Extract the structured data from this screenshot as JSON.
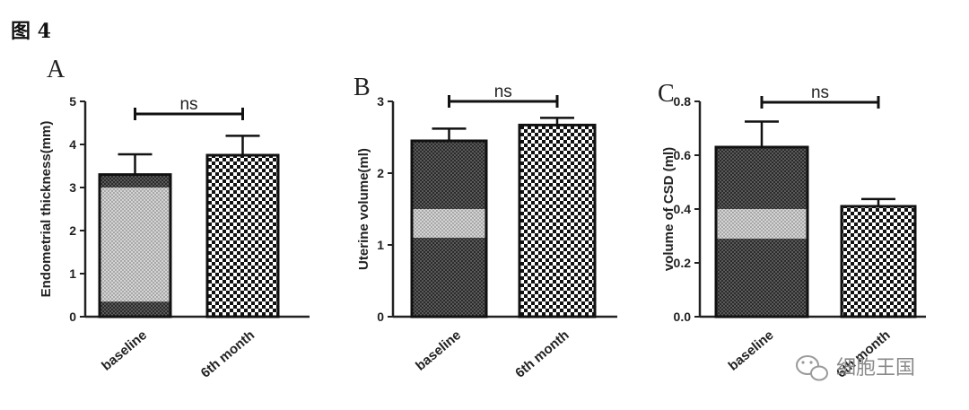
{
  "figure": {
    "label": "图 4"
  },
  "watermark": {
    "text": "细胞王国",
    "icon": "wechat-icon"
  },
  "colors": {
    "bar_outline": "#111111",
    "axis": "#222222",
    "watermark": "#8a8a8a"
  },
  "chart_data": [
    {
      "type": "bar",
      "panel": "A",
      "title": "",
      "categories": [
        "baseline",
        "6th month"
      ],
      "values": [
        3.3,
        3.75
      ],
      "errors": [
        0.47,
        0.45
      ],
      "ylabel": "Endometrial thickness(mm)",
      "xlabel": "",
      "ylim": [
        0,
        5
      ],
      "yticks": [
        0,
        1,
        2,
        3,
        4,
        5
      ],
      "significance": {
        "label": "ns",
        "between": [
          0,
          1
        ]
      },
      "grid": false,
      "legend": "none"
    },
    {
      "type": "bar",
      "panel": "B",
      "title": "",
      "categories": [
        "baseline",
        "6th month"
      ],
      "values": [
        2.45,
        2.67
      ],
      "errors": [
        0.17,
        0.1
      ],
      "ylabel": "Uterine volume(ml)",
      "xlabel": "",
      "ylim": [
        0,
        3
      ],
      "yticks": [
        0,
        1,
        2,
        3
      ],
      "significance": {
        "label": "ns",
        "between": [
          0,
          1
        ]
      },
      "grid": false,
      "legend": "none"
    },
    {
      "type": "bar",
      "panel": "C",
      "title": "",
      "categories": [
        "baseline",
        "6th month"
      ],
      "values": [
        0.63,
        0.41
      ],
      "errors": [
        0.095,
        0.027
      ],
      "ylabel": "volume of CSD (ml)",
      "xlabel": "",
      "ylim": [
        0,
        0.8
      ],
      "yticks": [
        "0.0",
        "0.2",
        "0.4",
        "0.6",
        "0.8"
      ],
      "significance": {
        "label": "ns",
        "between": [
          0,
          1
        ]
      },
      "grid": false,
      "legend": "none"
    }
  ]
}
